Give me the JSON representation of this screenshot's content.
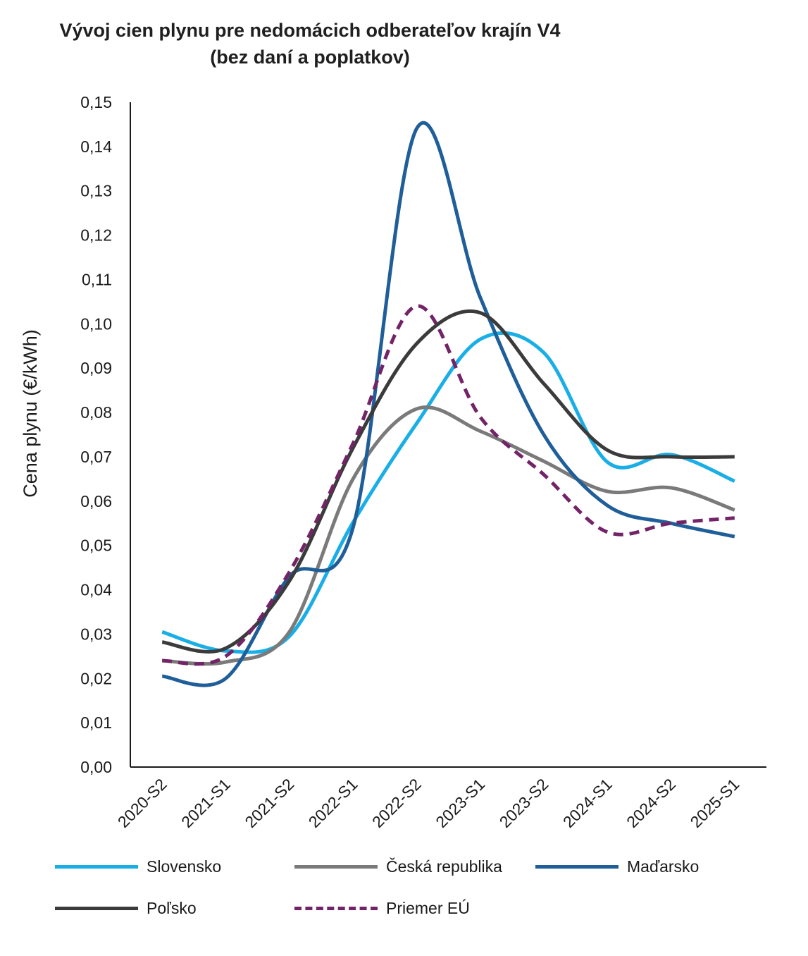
{
  "chart_data": {
    "type": "line",
    "title": "Vývoj  cien plynu pre nedomácich odberateľov krajín V4",
    "subtitle": "(bez daní a poplatkov)",
    "xlabel": "",
    "ylabel": "Cena plynu  (€/kWh)",
    "ylim": [
      0,
      0.15
    ],
    "ytick_step": 0.01,
    "ytick_labels": [
      "0,00",
      "0,01",
      "0,02",
      "0,03",
      "0,04",
      "0,05",
      "0,06",
      "0,07",
      "0,08",
      "0,09",
      "0,10",
      "0,11",
      "0,12",
      "0,13",
      "0,14",
      "0,15"
    ],
    "categories": [
      "2020-S2",
      "2021-S1",
      "2021-S2",
      "2022-S1",
      "2022-S2",
      "2023-S1",
      "2023-S2",
      "2024-S1",
      "2024-S2",
      "2025-S1"
    ],
    "grid": false,
    "legend_position": "bottom",
    "series": [
      {
        "name": "Slovensko",
        "color": "#1aaee6",
        "dash": false,
        "values": [
          0.0305,
          0.0262,
          0.0295,
          0.0552,
          0.0775,
          0.0965,
          0.0935,
          0.0688,
          0.0705,
          0.0645
        ]
      },
      {
        "name": "Česká republika",
        "color": "#7a7a7a",
        "dash": false,
        "values": [
          0.024,
          0.0237,
          0.0305,
          0.065,
          0.0808,
          0.0758,
          0.069,
          0.0622,
          0.063,
          0.058
        ]
      },
      {
        "name": "Maďarsko",
        "color": "#1f5e99",
        "dash": false,
        "values": [
          0.0205,
          0.02,
          0.043,
          0.054,
          0.144,
          0.106,
          0.075,
          0.059,
          0.055,
          0.052
        ]
      },
      {
        "name": "Poľsko",
        "color": "#3b3b3b",
        "dash": false,
        "values": [
          0.0282,
          0.0268,
          0.042,
          0.072,
          0.0955,
          0.1025,
          0.0865,
          0.0715,
          0.07,
          0.07
        ]
      },
      {
        "name": "Priemer EÚ",
        "color": "#722467",
        "dash": true,
        "values": [
          0.024,
          0.025,
          0.044,
          0.073,
          0.104,
          0.079,
          0.066,
          0.053,
          0.055,
          0.0562
        ]
      }
    ]
  }
}
